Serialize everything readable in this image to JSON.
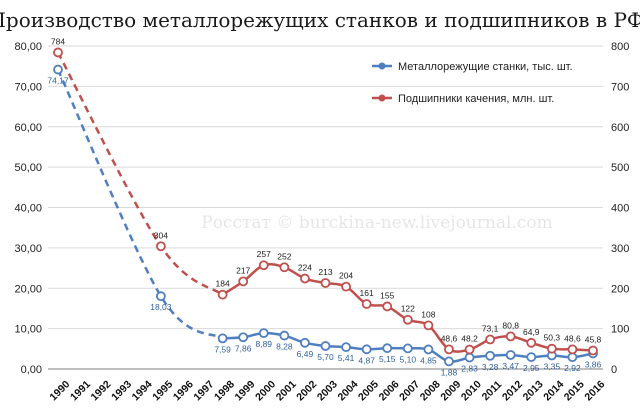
{
  "chart_data": {
    "type": "line",
    "title": "Производство металлорежущих станков и подшипников в РФ",
    "watermark": "Росстат © burckina-new.livejournal.com",
    "categories": [
      "1990",
      "1991",
      "1992",
      "1993",
      "1994",
      "1995",
      "1996",
      "1997",
      "1998",
      "1999",
      "2000",
      "2001",
      "2002",
      "2003",
      "2004",
      "2005",
      "2006",
      "2007",
      "2008",
      "2009",
      "2010",
      "2011",
      "2012",
      "2013",
      "2014",
      "2015",
      "2016"
    ],
    "y_left": {
      "min": 0,
      "max": 80,
      "step": 10,
      "tick_labels": [
        "0,00",
        "10,00",
        "20,00",
        "30,00",
        "40,00",
        "50,00",
        "60,00",
        "70,00",
        "80,00"
      ]
    },
    "y_right": {
      "min": 0,
      "max": 800,
      "step": 100,
      "tick_labels": [
        "0",
        "100",
        "200",
        "300",
        "400",
        "500",
        "600",
        "700",
        "800"
      ]
    },
    "grid": true,
    "legend_position": "top-right",
    "series": [
      {
        "name": "Металлорежущие станки, тыс. шт.",
        "axis": "left",
        "color": "#4f7fc0",
        "values": [
          74.17,
          null,
          null,
          null,
          null,
          18.03,
          null,
          null,
          7.59,
          7.86,
          8.89,
          8.28,
          6.49,
          5.7,
          5.41,
          4.87,
          5.15,
          5.1,
          4.85,
          1.88,
          2.83,
          3.28,
          3.47,
          2.95,
          3.35,
          2.92,
          3.86
        ],
        "labels": [
          "74,17",
          "",
          "",
          "",
          "",
          "18,03",
          "",
          "",
          "7,59",
          "7,86",
          "8,89",
          "8,28",
          "6,49",
          "5,70",
          "5,41",
          "4,87",
          "5,15",
          "5,10",
          "4,85",
          "1,88",
          "2,83",
          "3,28",
          "3,47",
          "2,95",
          "3,35",
          "2,92",
          "3,86"
        ]
      },
      {
        "name": "Подшипники качения, млн. шт.",
        "axis": "right",
        "color": "#c0504d",
        "values": [
          784,
          null,
          null,
          null,
          null,
          304,
          null,
          null,
          184,
          217,
          257,
          252,
          224,
          213,
          204,
          161,
          155,
          122,
          108,
          48.6,
          48.2,
          73.1,
          80.8,
          64.9,
          50.3,
          48.6,
          45.8
        ],
        "labels": [
          "784",
          "",
          "",
          "",
          "",
          "304",
          "",
          "",
          "184",
          "217",
          "257",
          "252",
          "224",
          "213",
          "204",
          "161",
          "155",
          "122",
          "108",
          "48,6",
          "48,2",
          "73,1",
          "80,8",
          "64,9",
          "50,3",
          "48,6",
          "45,8"
        ]
      }
    ]
  }
}
